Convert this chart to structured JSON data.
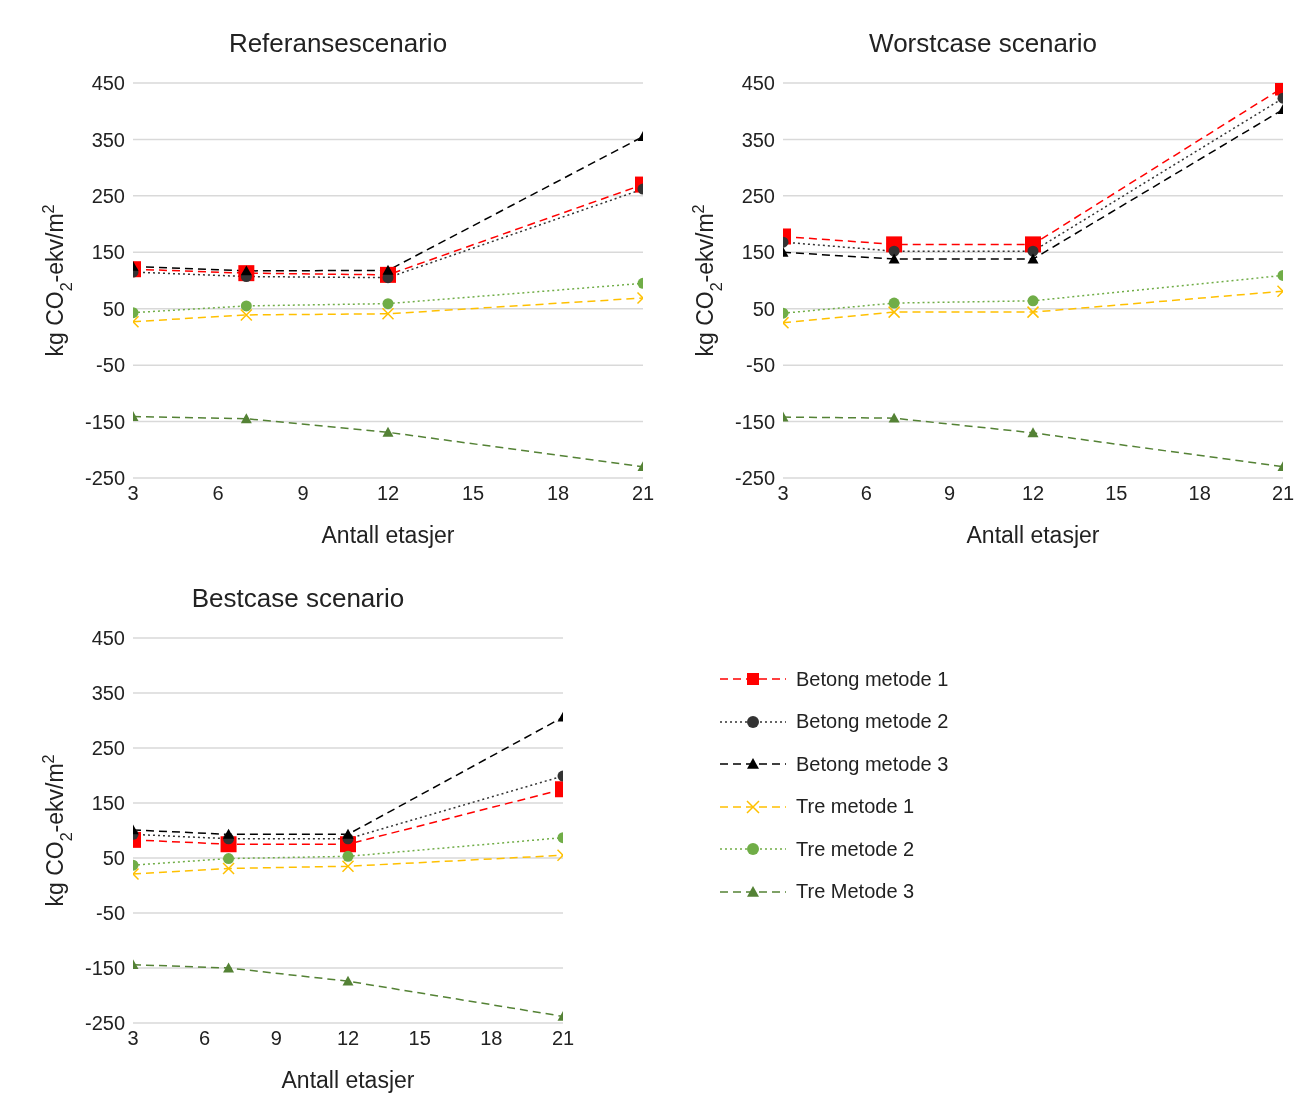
{
  "chart_data": [
    {
      "type": "line",
      "title": "Referansescenario",
      "xlabel": "Antall etasjer",
      "ylabel": "kg CO$_{2}$-ekv/m$^{2}$",
      "x": [
        3,
        7,
        12,
        21
      ],
      "xlim": [
        3,
        21
      ],
      "xticks": [
        3,
        6,
        9,
        12,
        15,
        18,
        21
      ],
      "ylim": [
        -250,
        450
      ],
      "yticks": [
        -250,
        -150,
        -50,
        50,
        150,
        250,
        350,
        450
      ],
      "grid": "y",
      "legend": false,
      "series": [
        {
          "color": "#ff0000",
          "marker": "square",
          "line_style": "dashed",
          "values": [
            120,
            113,
            110,
            270
          ]
        },
        {
          "color": "#333333",
          "marker": "circle",
          "line_style": "dotted",
          "values": [
            115,
            107,
            105,
            262
          ]
        },
        {
          "color": "#000000",
          "marker": "triangle",
          "line_style": "dashed",
          "values": [
            125,
            117,
            118,
            355
          ]
        },
        {
          "color": "#ffc000",
          "marker": "cross",
          "line_style": "dashed",
          "values": [
            27,
            39,
            41,
            69
          ]
        },
        {
          "color": "#70ad47",
          "marker": "circle",
          "line_style": "dotted",
          "values": [
            43,
            55,
            59,
            95
          ]
        },
        {
          "color": "#548235",
          "marker": "triangle",
          "line_style": "dashed",
          "values": [
            -141,
            -145,
            -169,
            -230
          ]
        }
      ]
    },
    {
      "type": "line",
      "title": "Worstcase scenario",
      "xlabel": "Antall etasjer",
      "ylabel": "kg CO$_{2}$-ekv/m$^{2}$",
      "x": [
        3,
        7,
        12,
        21
      ],
      "xlim": [
        3,
        21
      ],
      "xticks": [
        3,
        6,
        9,
        12,
        15,
        18,
        21
      ],
      "ylim": [
        -250,
        450
      ],
      "yticks": [
        -250,
        -150,
        -50,
        50,
        150,
        250,
        350,
        450
      ],
      "grid": "y",
      "legend": false,
      "series": [
        {
          "color": "#ff0000",
          "marker": "square",
          "line_style": "dashed",
          "values": [
            178,
            164,
            164,
            442
          ]
        },
        {
          "color": "#333333",
          "marker": "circle",
          "line_style": "dotted",
          "values": [
            168,
            152,
            152,
            423
          ]
        },
        {
          "color": "#000000",
          "marker": "triangle",
          "line_style": "dashed",
          "values": [
            150,
            138,
            138,
            403
          ]
        },
        {
          "color": "#ffc000",
          "marker": "cross",
          "line_style": "dashed",
          "values": [
            25,
            44,
            44,
            81
          ]
        },
        {
          "color": "#70ad47",
          "marker": "circle",
          "line_style": "dotted",
          "values": [
            42,
            60,
            64,
            109
          ]
        },
        {
          "color": "#548235",
          "marker": "triangle",
          "line_style": "dashed",
          "values": [
            -142,
            -144,
            -170,
            -230
          ]
        }
      ]
    },
    {
      "type": "line",
      "title": "Bestcase scenario",
      "xlabel": "Antall etasjer",
      "ylabel": "kg CO$_{2}$-ekv/m$^{2}$",
      "x": [
        3,
        7,
        12,
        21
      ],
      "xlim": [
        3,
        21
      ],
      "xticks": [
        3,
        6,
        9,
        12,
        15,
        18,
        21
      ],
      "ylim": [
        -250,
        450
      ],
      "yticks": [
        -250,
        -150,
        -50,
        50,
        150,
        250,
        350,
        450
      ],
      "grid": "y",
      "legend": "right",
      "series": [
        {
          "name": "Betong metode 1",
          "color": "#ff0000",
          "marker": "square",
          "line_style": "dashed",
          "values": [
            83,
            75,
            75,
            175
          ]
        },
        {
          "name": "Betong metode 2",
          "color": "#333333",
          "marker": "circle",
          "line_style": "dotted",
          "values": [
            93,
            85,
            85,
            199
          ]
        },
        {
          "name": "Betong metode 3",
          "color": "#000000",
          "marker": "triangle",
          "line_style": "dashed",
          "values": [
            101,
            93,
            93,
            306
          ]
        },
        {
          "name": "Tre metode 1",
          "color": "#ffc000",
          "marker": "cross",
          "line_style": "dashed",
          "values": [
            21,
            31,
            35,
            55
          ]
        },
        {
          "name": "Tre metode 2",
          "color": "#70ad47",
          "marker": "circle",
          "line_style": "dotted",
          "values": [
            37,
            49,
            53,
            87
          ]
        },
        {
          "name": "Tre Metode 3",
          "color": "#548235",
          "marker": "triangle",
          "line_style": "dashed",
          "values": [
            -144,
            -150,
            -174,
            -238
          ]
        }
      ]
    }
  ]
}
